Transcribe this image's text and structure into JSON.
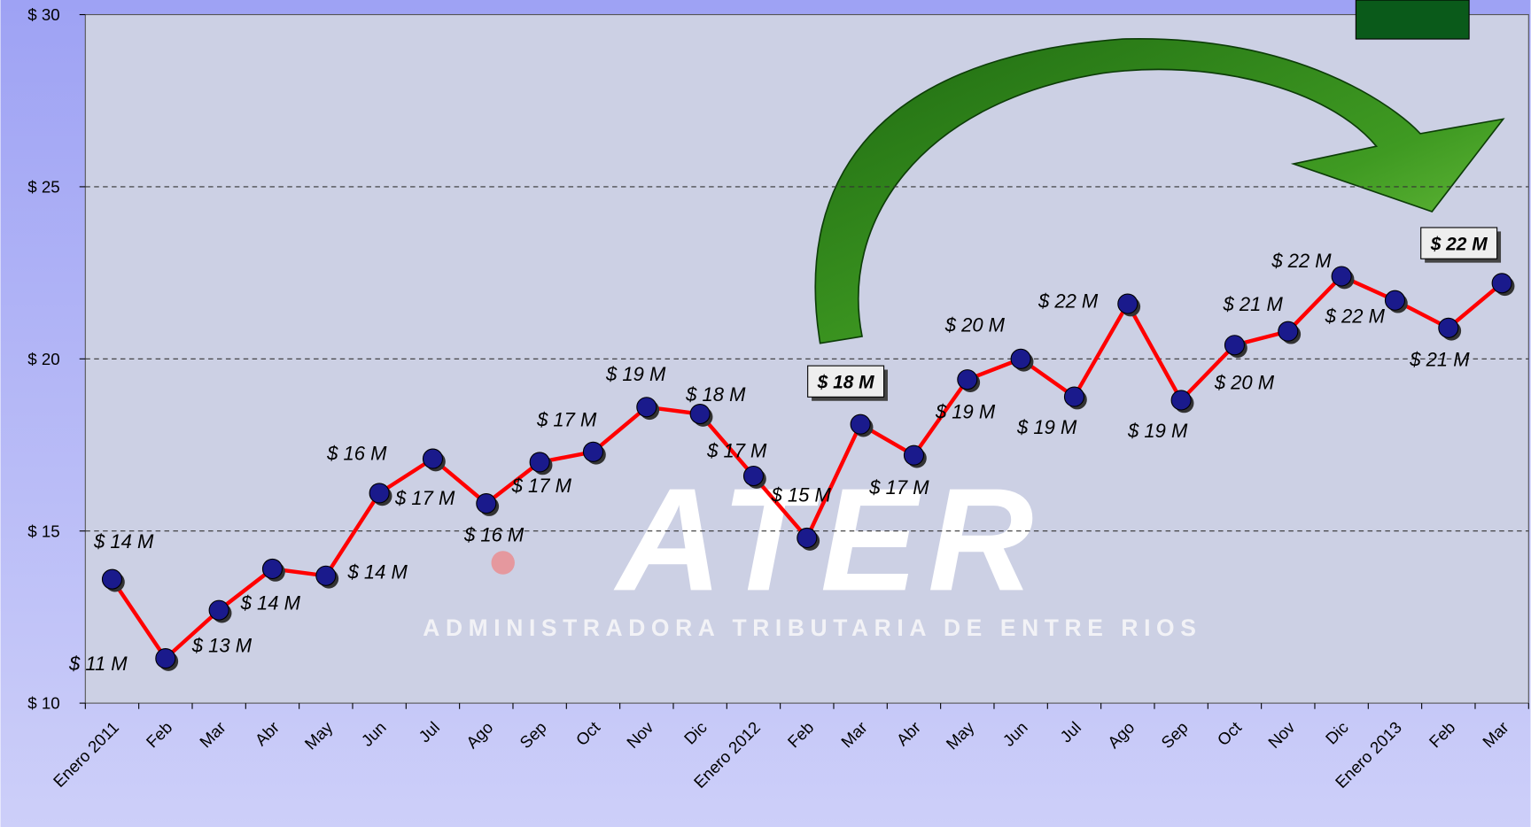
{
  "chart_data": {
    "type": "line",
    "categories": [
      "Enero 2011",
      "Feb",
      "Mar",
      "Abr",
      "May",
      "Jun",
      "Jul",
      "Ago",
      "Sep",
      "Oct",
      "Nov",
      "Dic",
      "Enero 2012",
      "Feb",
      "Mar",
      "Abr",
      "May",
      "Jun",
      "Jul",
      "Ago",
      "Sep",
      "Oct",
      "Nov",
      "Dic",
      "Enero 2013",
      "Feb",
      "Mar"
    ],
    "series": [
      {
        "color": "#ff0000",
        "marker_color": "#1a1a8c",
        "values": [
          13.6,
          11.3,
          12.7,
          13.9,
          13.7,
          16.1,
          17.1,
          15.8,
          17.0,
          17.3,
          18.6,
          18.4,
          16.6,
          14.8,
          18.1,
          17.2,
          19.4,
          20.0,
          18.9,
          21.6,
          18.8,
          20.4,
          20.8,
          22.4,
          21.7,
          20.9,
          22.2
        ],
        "value_labels": [
          "$ 14 M",
          "$ 11 M",
          "$ 13 M",
          "$ 14 M",
          "$ 14 M",
          "$ 16 M",
          "$ 17 M",
          "$ 16 M",
          "$ 17 M",
          "$ 17 M",
          "$ 19 M",
          "$ 18 M",
          "$ 17 M",
          "$ 15 M",
          "$ 18 M",
          "$ 17 M",
          "$ 19 M",
          "$ 20 M",
          "$ 19 M",
          "$ 22 M",
          "$ 19 M",
          "$ 20 M",
          "$ 21 M",
          "$ 22 M",
          "$ 22 M",
          "$ 21 M",
          "$ 22 M"
        ]
      }
    ],
    "ylim": [
      10,
      30
    ],
    "yticks": [
      {
        "value": 10,
        "label": "$ 10"
      },
      {
        "value": 15,
        "label": "$ 15"
      },
      {
        "value": 20,
        "label": "$ 20"
      },
      {
        "value": 25,
        "label": "$ 25"
      },
      {
        "value": 30,
        "label": "$ 30"
      }
    ],
    "grid": true,
    "watermark": {
      "title": "ATER",
      "subtitle": "ADMINISTRADORA TRIBUTARIA DE ENTRE RIOS"
    }
  }
}
